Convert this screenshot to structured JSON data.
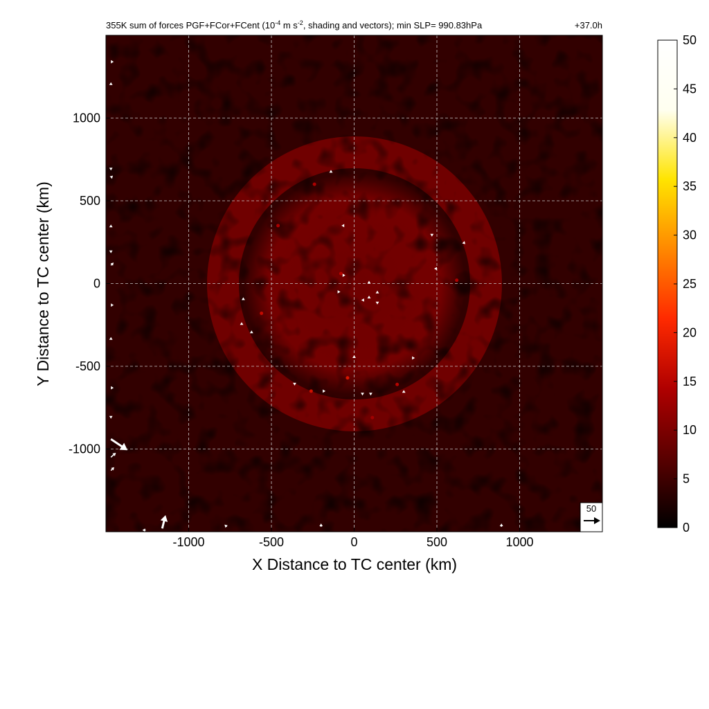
{
  "chart_data": {
    "type": "heatmap",
    "title_main": "355K sum of forces PGF+FCor+FCent (10",
    "title_exp1": "-4",
    "title_mid": " m s",
    "title_exp2": "-2",
    "title_rest": ", shading and vectors); min SLP= 990.83hPa",
    "time_label": "+37.0h",
    "xlabel": "X Distance to TC center (km)",
    "ylabel": "Y Distance to TC center (km)",
    "xlim": [
      -1500,
      1500
    ],
    "ylim": [
      -1500,
      1500
    ],
    "xticks": [
      -1000,
      -500,
      0,
      500,
      1000
    ],
    "yticks": [
      -1000,
      -500,
      0,
      500,
      1000
    ],
    "xtick_labels": [
      "-1000",
      "-500",
      "0",
      "500",
      "1000"
    ],
    "ytick_labels": [
      "-1000",
      "-500",
      "0",
      "500",
      "1000"
    ],
    "grid": true,
    "colorbar": {
      "min": 0,
      "max": 50,
      "ticks": [
        0,
        5,
        10,
        15,
        20,
        25,
        30,
        35,
        40,
        45,
        50
      ],
      "tick_labels": [
        "0",
        "5",
        "10",
        "15",
        "20",
        "25",
        "30",
        "35",
        "40",
        "45",
        "50"
      ],
      "colormap": "hot",
      "colors": [
        "#000000",
        "#5a0000",
        "#b00000",
        "#ff2a00",
        "#ff8800",
        "#ffe400",
        "#fffff0",
        "#ffffff"
      ]
    },
    "reference_vector": {
      "label": "50",
      "value": 50
    },
    "field_features": {
      "background_magnitude": 4,
      "inner_core_radius_km": 600,
      "inner_core_magnitude": 9,
      "outer_ring_radius_km": 750,
      "outer_ring_magnitude": 8
    },
    "vectors": [
      {
        "x": -1470,
        "y": 1340,
        "u": 4,
        "v": 0
      },
      {
        "x": -1470,
        "y": 1200,
        "u": 0,
        "v": 4
      },
      {
        "x": -1470,
        "y": 700,
        "u": 0,
        "v": -4
      },
      {
        "x": -1470,
        "y": 640,
        "u": 3,
        "v": 3
      },
      {
        "x": -1470,
        "y": 340,
        "u": 0,
        "v": 4
      },
      {
        "x": -1470,
        "y": 200,
        "u": 0,
        "v": -4
      },
      {
        "x": -1470,
        "y": 110,
        "u": 5,
        "v": 5
      },
      {
        "x": -1470,
        "y": -130,
        "u": 4,
        "v": 0
      },
      {
        "x": -1470,
        "y": -340,
        "u": 0,
        "v": 5
      },
      {
        "x": -1470,
        "y": -630,
        "u": 4,
        "v": 0
      },
      {
        "x": -1470,
        "y": -800,
        "u": 0,
        "v": -4
      },
      {
        "x": -1470,
        "y": -940,
        "u": 30,
        "v": -20
      },
      {
        "x": -1470,
        "y": -1050,
        "u": 9,
        "v": 8
      },
      {
        "x": -1470,
        "y": -1130,
        "u": 6,
        "v": 6
      },
      {
        "x": -1160,
        "y": -1480,
        "u": 6,
        "v": 24
      },
      {
        "x": -1260,
        "y": -1490,
        "u": -6,
        "v": 0
      },
      {
        "x": -770,
        "y": -1470,
        "u": -4,
        "v": 4
      },
      {
        "x": -200,
        "y": -1470,
        "u": 0,
        "v": 6
      },
      {
        "x": 890,
        "y": -1470,
        "u": 0,
        "v": 6
      },
      {
        "x": 1400,
        "y": -1470,
        "u": 4,
        "v": 4
      },
      {
        "x": -140,
        "y": 670,
        "u": 0,
        "v": 4
      },
      {
        "x": -60,
        "y": 350,
        "u": -4,
        "v": 0
      },
      {
        "x": 470,
        "y": 300,
        "u": 0,
        "v": -4
      },
      {
        "x": 660,
        "y": 250,
        "u": 3,
        "v": -3
      },
      {
        "x": -70,
        "y": 50,
        "u": 4,
        "v": 0
      },
      {
        "x": 500,
        "y": 90,
        "u": -4,
        "v": 0
      },
      {
        "x": 90,
        "y": 0,
        "u": 0,
        "v": 4
      },
      {
        "x": 140,
        "y": -60,
        "u": 0,
        "v": 4
      },
      {
        "x": 90,
        "y": -90,
        "u": 0,
        "v": 4
      },
      {
        "x": -100,
        "y": -50,
        "u": 4,
        "v": 0
      },
      {
        "x": 60,
        "y": -100,
        "u": -4,
        "v": 0
      },
      {
        "x": 140,
        "y": -110,
        "u": 0,
        "v": -4
      },
      {
        "x": -670,
        "y": -100,
        "u": 0,
        "v": 4
      },
      {
        "x": -680,
        "y": -250,
        "u": 0,
        "v": 4
      },
      {
        "x": -620,
        "y": -300,
        "u": 0,
        "v": 4
      },
      {
        "x": 0,
        "y": -450,
        "u": 0,
        "v": 4
      },
      {
        "x": 350,
        "y": -450,
        "u": 4,
        "v": 0
      },
      {
        "x": -360,
        "y": -600,
        "u": 0,
        "v": -4
      },
      {
        "x": -190,
        "y": -650,
        "u": 4,
        "v": 0
      },
      {
        "x": 50,
        "y": -660,
        "u": 0,
        "v": -4
      },
      {
        "x": 100,
        "y": -660,
        "u": 0,
        "v": -4
      },
      {
        "x": 300,
        "y": -660,
        "u": 0,
        "v": 4
      }
    ],
    "hot_spots": [
      {
        "x": -460,
        "y": 350,
        "v": 14
      },
      {
        "x": -80,
        "y": 60,
        "v": 15
      },
      {
        "x": -560,
        "y": -180,
        "v": 16
      },
      {
        "x": -40,
        "y": -570,
        "v": 18
      },
      {
        "x": -260,
        "y": -650,
        "v": 17
      },
      {
        "x": -240,
        "y": 600,
        "v": 14
      },
      {
        "x": 620,
        "y": 20,
        "v": 14
      },
      {
        "x": 110,
        "y": -810,
        "v": 13
      },
      {
        "x": 260,
        "y": -610,
        "v": 15
      }
    ]
  }
}
